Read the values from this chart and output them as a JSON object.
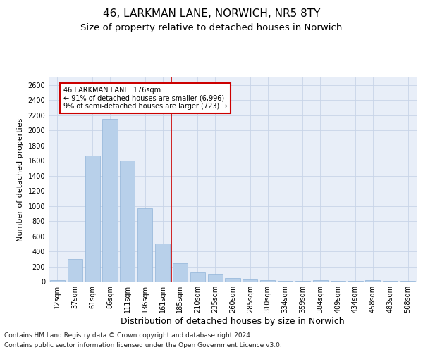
{
  "title1": "46, LARKMAN LANE, NORWICH, NR5 8TY",
  "title2": "Size of property relative to detached houses in Norwich",
  "xlabel": "Distribution of detached houses by size in Norwich",
  "ylabel": "Number of detached properties",
  "categories": [
    "12sqm",
    "37sqm",
    "61sqm",
    "86sqm",
    "111sqm",
    "136sqm",
    "161sqm",
    "185sqm",
    "210sqm",
    "235sqm",
    "260sqm",
    "285sqm",
    "310sqm",
    "334sqm",
    "359sqm",
    "384sqm",
    "409sqm",
    "434sqm",
    "458sqm",
    "483sqm",
    "508sqm"
  ],
  "values": [
    20,
    300,
    1670,
    2150,
    1600,
    970,
    500,
    245,
    120,
    100,
    50,
    30,
    15,
    10,
    5,
    20,
    5,
    5,
    20,
    5,
    5
  ],
  "bar_color": "#b8d0ea",
  "bar_edgecolor": "#90b4d8",
  "annotation_line1": "46 LARKMAN LANE: 176sqm",
  "annotation_line2": "← 91% of detached houses are smaller (6,996)",
  "annotation_line3": "9% of semi-detached houses are larger (723) →",
  "vline_color": "#cc0000",
  "annotation_box_facecolor": "#ffffff",
  "annotation_box_edgecolor": "#cc0000",
  "ylim": [
    0,
    2700
  ],
  "yticks": [
    0,
    200,
    400,
    600,
    800,
    1000,
    1200,
    1400,
    1600,
    1800,
    2000,
    2200,
    2400,
    2600
  ],
  "grid_color": "#c8d4e8",
  "background_color": "#e8eef8",
  "footer1": "Contains HM Land Registry data © Crown copyright and database right 2024.",
  "footer2": "Contains public sector information licensed under the Open Government Licence v3.0.",
  "title1_fontsize": 11,
  "title2_fontsize": 9.5,
  "xlabel_fontsize": 9,
  "ylabel_fontsize": 8,
  "tick_fontsize": 7,
  "annot_fontsize": 7,
  "footer_fontsize": 6.5
}
